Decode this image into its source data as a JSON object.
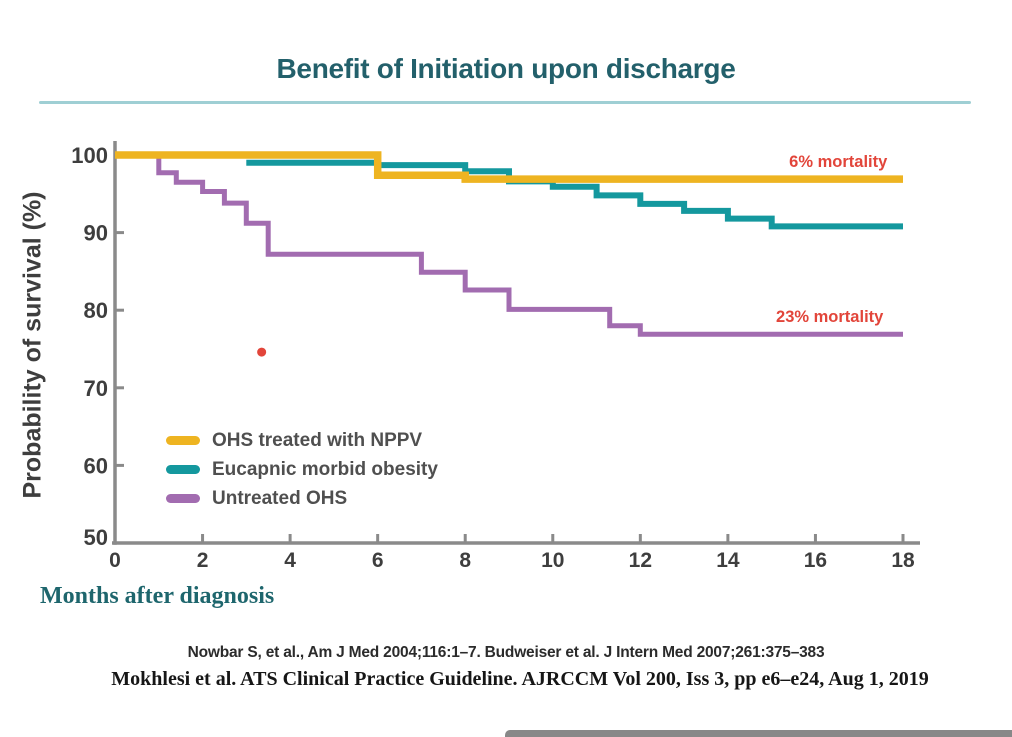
{
  "page": {
    "citations": [
      "Nowbar S, et al., Am J Med 2004;116:1–7. Budweiser et al. J Intern Med 2007;261:375–383",
      "Mokhlesi et al. ATS Clinical Practice Guideline. AJRCCM Vol 200, Iss 3, pp e6–e24, Aug 1, 2019"
    ]
  },
  "colors": {
    "title_teal": "#23606B",
    "underline": "#9FCFD4",
    "axis": "#8A8A8A",
    "tick_text": "#3E3E3E",
    "legend_text": "#4F4F4F",
    "red": "#E2453A",
    "caption_teal": "#1E666D",
    "citation1": "#2B2B2B",
    "citation2": "#161616",
    "bottom_bar": "#606060"
  },
  "chart_data": {
    "type": "line",
    "subtype": "kaplan-meier-step",
    "title": "Benefit of Initiation upon discharge",
    "xlabel": "Months after diagnosis",
    "ylabel": "Probability of survival (%)",
    "xlim": [
      0,
      18
    ],
    "ylim": [
      50,
      100
    ],
    "xticks": [
      0,
      2,
      4,
      6,
      8,
      10,
      12,
      14,
      16,
      18
    ],
    "yticks": [
      50,
      60,
      70,
      80,
      90,
      100
    ],
    "grid": false,
    "legend_position": "inside-lower-left",
    "series": [
      {
        "name": "OHS treated with NPPV",
        "color": "#EEB421",
        "points": [
          [
            0,
            100
          ],
          [
            6,
            100
          ],
          [
            6,
            97.4
          ],
          [
            8,
            97.4
          ],
          [
            8,
            96.9
          ],
          [
            18,
            96.9
          ]
        ]
      },
      {
        "name": "Eucapnic morbid obesity",
        "color": "#14989E",
        "points": [
          [
            3,
            99
          ],
          [
            6,
            99
          ],
          [
            6,
            98.7
          ],
          [
            8,
            98.7
          ],
          [
            8,
            97.9
          ],
          [
            9,
            97.9
          ],
          [
            9,
            96.6
          ],
          [
            10,
            96.6
          ],
          [
            10,
            95.9
          ],
          [
            11,
            95.9
          ],
          [
            11,
            94.8
          ],
          [
            12,
            94.8
          ],
          [
            12,
            93.7
          ],
          [
            13,
            93.7
          ],
          [
            13,
            92.8
          ],
          [
            14,
            92.8
          ],
          [
            14,
            91.8
          ],
          [
            15,
            91.8
          ],
          [
            15,
            90.8
          ],
          [
            18,
            90.8
          ]
        ]
      },
      {
        "name": "Untreated OHS",
        "color": "#A26CB0",
        "points": [
          [
            1,
            100
          ],
          [
            1,
            97.7
          ],
          [
            1.4,
            97.7
          ],
          [
            1.4,
            96.5
          ],
          [
            2,
            96.5
          ],
          [
            2,
            95.3
          ],
          [
            2.5,
            95.3
          ],
          [
            2.5,
            93.8
          ],
          [
            3,
            93.8
          ],
          [
            3,
            91.2
          ],
          [
            3.5,
            91.2
          ],
          [
            3.5,
            87.2
          ],
          [
            7,
            87.2
          ],
          [
            7,
            84.9
          ],
          [
            8,
            84.9
          ],
          [
            8,
            82.6
          ],
          [
            9,
            82.6
          ],
          [
            9,
            80.1
          ],
          [
            11.3,
            80.1
          ],
          [
            11.3,
            78.0
          ],
          [
            12,
            78.0
          ],
          [
            12,
            76.9
          ],
          [
            18,
            76.9
          ]
        ]
      }
    ],
    "marker": {
      "symbol": "dot",
      "x": 3.35,
      "y": 74.6
    },
    "annotations": [
      {
        "text": "6% mortality",
        "x": 15.4,
        "y": 100.3
      },
      {
        "text": "23% mortality",
        "x": 15.1,
        "y": 80.3
      }
    ]
  }
}
